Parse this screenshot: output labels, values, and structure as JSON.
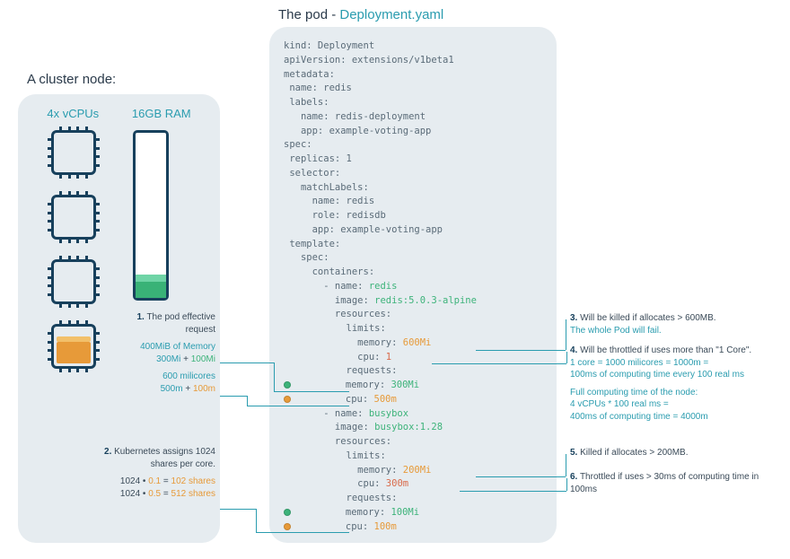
{
  "colors": {
    "panel_bg": "#e6ecf0",
    "text_dark": "#2a3a4a",
    "text_body": "#3a4a58",
    "text_muted": "#5a6b78",
    "teal": "#2a9caf",
    "navy": "#17405c",
    "green": "#3db37a",
    "green_light": "#6fd4a6",
    "orange": "#e79a39",
    "red": "#d96a4a",
    "white": "#ffffff"
  },
  "header": {
    "prefix": "The pod - ",
    "filename": "Deployment.yaml"
  },
  "cluster": {
    "title": "A cluster node:",
    "cpu_label": "4x vCPUs",
    "ram_label": "16GB RAM",
    "cpu_chips": [
      {
        "fill_pct": 0,
        "fill_color": null
      },
      {
        "fill_pct": 0,
        "fill_color": null
      },
      {
        "fill_pct": 0,
        "fill_color": null
      },
      {
        "fill_pct": 55,
        "fill_color": "#e79a39",
        "fill_top_color": "#f2c06a"
      }
    ],
    "ram_fill": {
      "lower_pct": 9,
      "upper_pct": 4
    }
  },
  "left_notes": {
    "n1": {
      "num": "1.",
      "text": "The pod effective request",
      "mem_line_prefix": "400MiB of Memory",
      "mem_a": "300Mi",
      "mem_plus": " + ",
      "mem_b": "100Mi",
      "cpu_line_prefix": "600 milicores",
      "cpu_a": "500m",
      "cpu_plus": " + ",
      "cpu_b": "100m"
    },
    "n2": {
      "num": "2.",
      "text": "Kubernetes assigns 1024 shares per core.",
      "calc1_a": "1024",
      "calc1_op": " • ",
      "calc1_b": "0.1",
      "calc1_eq": " = ",
      "calc1_r": "102 shares",
      "calc2_a": "1024",
      "calc2_op": " • ",
      "calc2_b": "0.5",
      "calc2_eq": " = ",
      "calc2_r": "512 shares"
    }
  },
  "yaml": {
    "lines": [
      {
        "t": "kind: Deployment"
      },
      {
        "t": "apiVersion: extensions/v1beta1"
      },
      {
        "t": "metadata:"
      },
      {
        "t": " name: redis"
      },
      {
        "t": " labels:"
      },
      {
        "t": "   name: redis-deployment"
      },
      {
        "t": "   app: example-voting-app"
      },
      {
        "t": "spec:"
      },
      {
        "t": " replicas: 1"
      },
      {
        "t": " selector:"
      },
      {
        "t": "   matchLabels:"
      },
      {
        "t": "     name: redis"
      },
      {
        "t": "     role: redisdb"
      },
      {
        "t": "     app: example-voting-app"
      },
      {
        "t": " template:"
      },
      {
        "t": "   spec:"
      },
      {
        "t": "     containers:"
      },
      {
        "t": "       - name: ",
        "tail": "redis",
        "tail_cls": "g"
      },
      {
        "t": "         image: ",
        "tail": "redis:5.0.3-alpine",
        "tail_cls": "g"
      },
      {
        "t": "         resources:"
      },
      {
        "t": "           limits:"
      },
      {
        "t": "             memory: ",
        "tail": "600Mi",
        "tail_cls": "o"
      },
      {
        "t": "             cpu: ",
        "tail": "1",
        "tail_cls": "r"
      },
      {
        "t": "           requests:"
      },
      {
        "dot": "#3db37a",
        "t": "           memory: ",
        "tail": "300Mi",
        "tail_cls": "g"
      },
      {
        "dot": "#e79a39",
        "t": "           cpu: ",
        "tail": "500m",
        "tail_cls": "o"
      },
      {
        "t": "       - name: ",
        "tail": "busybox",
        "tail_cls": "g"
      },
      {
        "t": "         image: ",
        "tail": "busybox:1.28",
        "tail_cls": "g"
      },
      {
        "t": "         resources:"
      },
      {
        "t": "           limits:"
      },
      {
        "t": "             memory: ",
        "tail": "200Mi",
        "tail_cls": "o"
      },
      {
        "t": "             cpu: ",
        "tail": "300m",
        "tail_cls": "r"
      },
      {
        "t": "           requests:"
      },
      {
        "dot": "#3db37a",
        "t": "           memory: ",
        "tail": "100Mi",
        "tail_cls": "g"
      },
      {
        "dot": "#e79a39",
        "t": "           cpu: ",
        "tail": "100m",
        "tail_cls": "o"
      }
    ]
  },
  "right_notes": {
    "n3": {
      "num": "3.",
      "body": "Will be killed if allocates > 600MB.",
      "teal": "The whole Pod will fail."
    },
    "n4": {
      "num": "4.",
      "body": "Will be throttled if uses more than \"1 Core\".",
      "teal1": "1 core = 1000 milicores = 1000m =",
      "teal2": "100ms of computing time every 100 real ms",
      "teal3": "Full computing time of the node:",
      "teal4": "4 vCPUs * 100 real ms =",
      "teal5": "400ms of computing time = 4000m"
    },
    "n5": {
      "num": "5.",
      "body": "Killed if allocates > 200MB."
    },
    "n6": {
      "num": "6.",
      "body": "Throttled if uses > 30ms of computing time in 100ms"
    }
  }
}
